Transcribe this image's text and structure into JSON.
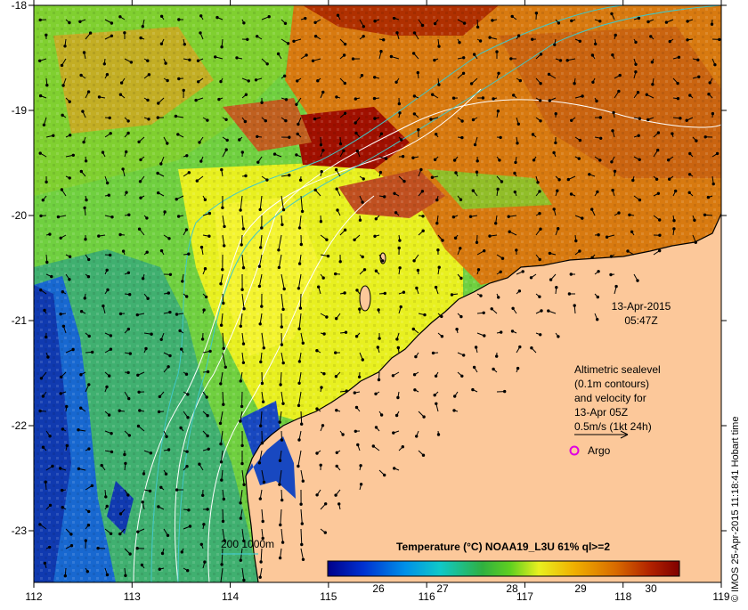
{
  "map": {
    "x_ticks": [
      "112",
      "113",
      "114",
      "115",
      "116",
      "117",
      "118",
      "119"
    ],
    "y_ticks": [
      "-18",
      "-19",
      "-20",
      "-21",
      "-22",
      "-23"
    ],
    "date_line1": "13-Apr-2015",
    "date_line2": "05:47Z",
    "legend_lines": [
      "Altimetric sealevel",
      "(0.1m contours)",
      "and velocity for",
      "13-Apr 05Z",
      "0.5m/s (1kt 24h)"
    ],
    "argo_label": "Argo",
    "argo_color": "#e000e0",
    "depth_label": "200  1000m",
    "depth_line_color": "#40c8c8",
    "colorbar_title": "Temperature (°C) NOAA19_L3U 61% ql>=2",
    "colorbar_ticks": [
      "26",
      "27",
      "28",
      "29",
      "30"
    ],
    "credit": "© IMOS 25-Apr-2015 11:18:41 Hobart time",
    "land_color": "#fcc89a"
  }
}
